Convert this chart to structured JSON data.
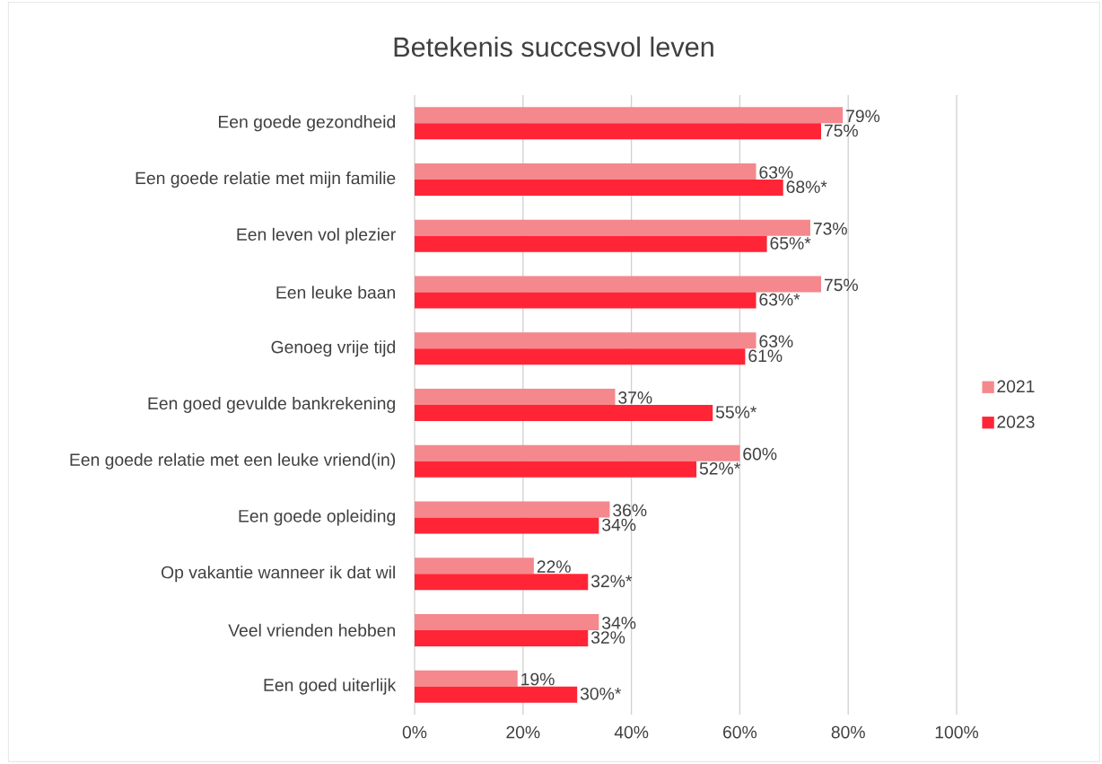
{
  "chart_data": {
    "type": "bar",
    "orientation": "horizontal",
    "title": "Betekenis succesvol leven",
    "categories": [
      "Een goede gezondheid",
      "Een goede relatie met mijn familie",
      "Een leven vol plezier",
      "Een leuke baan",
      "Genoeg vrije tijd",
      "Een goed gevulde bankrekening",
      "Een goede relatie met een leuke vriend(in)",
      "Een goede opleiding",
      "Op vakantie wanneer ik dat wil",
      "Veel vrienden hebben",
      "Een goed uiterlijk"
    ],
    "series": [
      {
        "name": "2021",
        "color": "#f4888d",
        "values": [
          79,
          63,
          73,
          75,
          63,
          37,
          60,
          36,
          22,
          34,
          19
        ],
        "value_labels": [
          "79%",
          "63%",
          "73%",
          "75%",
          "63%",
          "37%",
          "60%",
          "36%",
          "22%",
          "34%",
          "19%"
        ]
      },
      {
        "name": "2023",
        "color": "#ff2537",
        "values": [
          75,
          68,
          65,
          63,
          61,
          55,
          52,
          34,
          32,
          32,
          30
        ],
        "value_labels": [
          "75%",
          "68%*",
          "65%*",
          "63%*",
          "61%",
          "55%*",
          "52%*",
          "34%",
          "32%*",
          "32%",
          "30%*"
        ]
      }
    ],
    "xlim": [
      0,
      100
    ],
    "xticks": [
      {
        "value": 0,
        "label": "0%"
      },
      {
        "value": 20,
        "label": "20%"
      },
      {
        "value": 40,
        "label": "40%"
      },
      {
        "value": 60,
        "label": "60%"
      },
      {
        "value": 80,
        "label": "80%"
      },
      {
        "value": 100,
        "label": "100%"
      }
    ],
    "grid": "x",
    "legend": "right"
  }
}
